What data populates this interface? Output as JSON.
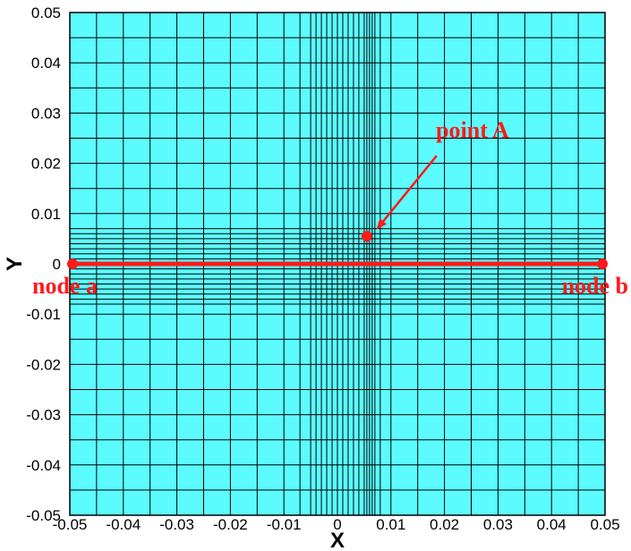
{
  "chart_data": {
    "type": "mesh",
    "xlabel": "X",
    "ylabel": "Y",
    "xlim": [
      -0.05,
      0.05
    ],
    "ylim": [
      -0.05,
      0.05
    ],
    "xticks": [
      "-0.05",
      "-0.04",
      "-0.03",
      "-0.02",
      "-0.01",
      "0",
      "0.01",
      "0.02",
      "0.03",
      "0.04",
      "0.05"
    ],
    "yticks": [
      "0.05",
      "0.04",
      "0.03",
      "0.02",
      "0.01",
      "0",
      "-0.01",
      "-0.02",
      "-0.03",
      "-0.04",
      "-0.05"
    ],
    "background_color": "#5cfbff",
    "grid_color": "#000000",
    "annotation_color": "#ff1a1a",
    "mesh_x_lines": [
      -0.05,
      -0.045,
      -0.04,
      -0.035,
      -0.03,
      -0.025,
      -0.02,
      -0.015,
      -0.01,
      -0.007,
      -0.005,
      -0.004,
      -0.003,
      -0.002,
      -0.001,
      0,
      0.001,
      0.002,
      0.003,
      0.004,
      0.005,
      0.0055,
      0.006,
      0.0065,
      0.007,
      0.008,
      0.01,
      0.015,
      0.02,
      0.025,
      0.03,
      0.035,
      0.04,
      0.045,
      0.05
    ],
    "mesh_y_lines": [
      -0.05,
      -0.045,
      -0.04,
      -0.035,
      -0.03,
      -0.025,
      -0.02,
      -0.015,
      -0.01,
      -0.008,
      -0.007,
      -0.006,
      -0.005,
      -0.004,
      -0.003,
      -0.002,
      -0.001,
      0,
      0.001,
      0.002,
      0.003,
      0.004,
      0.005,
      0.006,
      0.007,
      0.01,
      0.015,
      0.02,
      0.025,
      0.03,
      0.035,
      0.04,
      0.045,
      0.05
    ],
    "line_ab": {
      "x1": -0.05,
      "y1": 0,
      "x2": 0.05,
      "y2": 0
    },
    "node_a": {
      "label": "node a",
      "x": -0.05,
      "y": 0
    },
    "node_b": {
      "label": "node b",
      "x": 0.05,
      "y": 0
    },
    "point_A": {
      "label": "point A",
      "x": 0.0055,
      "y": 0.0055
    }
  }
}
